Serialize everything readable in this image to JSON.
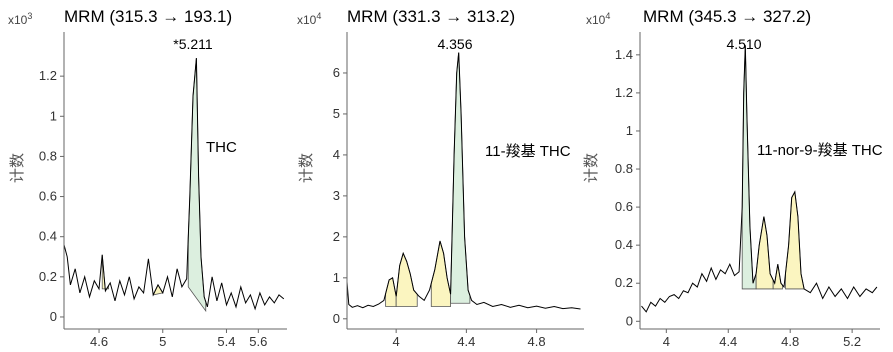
{
  "charts": [
    {
      "title": "MRM (315.3 → 193.1)",
      "multiplier_base": "x10",
      "multiplier_exp": "3",
      "ylabel": "计数",
      "yticks": [
        "0",
        "0.2",
        "0.4",
        "0.6",
        "0.8",
        "1",
        "1.2"
      ],
      "xticks": [
        "4.6",
        "5",
        "5.4",
        "5.6"
      ],
      "peak_label": "*5.211",
      "compound": "THC"
    },
    {
      "title": "MRM (331.3 → 313.2)",
      "multiplier_base": "x10",
      "multiplier_exp": "4",
      "ylabel": "计数",
      "yticks": [
        "0",
        "1",
        "2",
        "3",
        "4",
        "5",
        "6"
      ],
      "xticks": [
        "4",
        "4.4",
        "4.8"
      ],
      "peak_label": "4.356",
      "compound": "11-羧基 THC"
    },
    {
      "title": "MRM (345.3 → 327.2)",
      "multiplier_base": "x10",
      "multiplier_exp": "4",
      "ylabel": "计数",
      "yticks": [
        "0",
        "0.2",
        "0.4",
        "0.6",
        "0.8",
        "1",
        "1.2",
        "1.4"
      ],
      "xticks": [
        "4",
        "4.4",
        "4.8",
        "5.2"
      ],
      "peak_label": "4.510",
      "compound": "11-nor-9-羧基 THC"
    }
  ],
  "chart_data": [
    {
      "type": "line",
      "title": "MRM (315.3 → 193.1)",
      "ylabel": "计数",
      "y_unit_multiplier": "x10^3",
      "xlim": [
        4.38,
        5.78
      ],
      "ylim": [
        -0.05,
        1.42
      ],
      "points": [
        [
          4.38,
          0.36
        ],
        [
          4.4,
          0.3
        ],
        [
          4.42,
          0.16
        ],
        [
          4.45,
          0.24
        ],
        [
          4.48,
          0.12
        ],
        [
          4.51,
          0.2
        ],
        [
          4.54,
          0.1
        ],
        [
          4.57,
          0.18
        ],
        [
          4.6,
          0.14
        ],
        [
          4.62,
          0.31
        ],
        [
          4.64,
          0.13
        ],
        [
          4.67,
          0.17
        ],
        [
          4.7,
          0.08
        ],
        [
          4.73,
          0.18
        ],
        [
          4.76,
          0.11
        ],
        [
          4.79,
          0.2
        ],
        [
          4.82,
          0.09
        ],
        [
          4.85,
          0.15
        ],
        [
          4.88,
          0.12
        ],
        [
          4.91,
          0.29
        ],
        [
          4.94,
          0.11
        ],
        [
          4.97,
          0.16
        ],
        [
          5.0,
          0.12
        ],
        [
          5.03,
          0.2
        ],
        [
          5.06,
          0.1
        ],
        [
          5.09,
          0.24
        ],
        [
          5.12,
          0.15
        ],
        [
          5.15,
          0.19
        ],
        [
          5.17,
          0.6
        ],
        [
          5.19,
          1.1
        ],
        [
          5.211,
          1.29
        ],
        [
          5.225,
          0.7
        ],
        [
          5.24,
          0.3
        ],
        [
          5.26,
          0.1
        ],
        [
          5.28,
          0.05
        ],
        [
          5.31,
          0.2
        ],
        [
          5.34,
          0.08
        ],
        [
          5.37,
          0.17
        ],
        [
          5.4,
          0.06
        ],
        [
          5.43,
          0.12
        ],
        [
          5.46,
          0.05
        ],
        [
          5.49,
          0.15
        ],
        [
          5.52,
          0.07
        ],
        [
          5.55,
          0.11
        ],
        [
          5.58,
          0.04
        ],
        [
          5.61,
          0.12
        ],
        [
          5.64,
          0.06
        ],
        [
          5.67,
          0.1
        ],
        [
          5.7,
          0.07
        ],
        [
          5.73,
          0.11
        ],
        [
          5.76,
          0.09
        ]
      ],
      "integrated_peaks": [
        {
          "start": 4.62,
          "end": 4.66,
          "baseline": [
            0.14,
            0.14
          ],
          "fill": "#fbf5c0"
        },
        {
          "start": 4.94,
          "end": 5.0,
          "baseline": [
            0.11,
            0.12
          ],
          "fill": "#fbf5c0"
        },
        {
          "start": 5.16,
          "end": 5.27,
          "baseline": [
            0.15,
            0.03
          ],
          "fill": "#dcefdf"
        }
      ],
      "peak_label": "*5.211",
      "peak_x": 5.211,
      "compound": "THC"
    },
    {
      "type": "line",
      "title": "MRM (331.3 → 313.2)",
      "ylabel": "计数",
      "y_unit_multiplier": "x10^4",
      "xlim": [
        3.72,
        5.07
      ],
      "ylim": [
        -0.2,
        7.0
      ],
      "points": [
        [
          3.72,
          0.9
        ],
        [
          3.73,
          0.35
        ],
        [
          3.75,
          0.28
        ],
        [
          3.78,
          0.32
        ],
        [
          3.81,
          0.27
        ],
        [
          3.84,
          0.33
        ],
        [
          3.87,
          0.3
        ],
        [
          3.9,
          0.36
        ],
        [
          3.93,
          0.45
        ],
        [
          3.96,
          0.95
        ],
        [
          3.98,
          1.0
        ],
        [
          4.0,
          0.55
        ],
        [
          4.02,
          1.3
        ],
        [
          4.04,
          1.6
        ],
        [
          4.06,
          1.4
        ],
        [
          4.08,
          1.1
        ],
        [
          4.1,
          0.7
        ],
        [
          4.13,
          0.55
        ],
        [
          4.16,
          0.45
        ],
        [
          4.19,
          0.7
        ],
        [
          4.22,
          1.2
        ],
        [
          4.25,
          1.9
        ],
        [
          4.27,
          1.6
        ],
        [
          4.29,
          1.0
        ],
        [
          4.31,
          0.6
        ],
        [
          4.33,
          4.0
        ],
        [
          4.345,
          6.0
        ],
        [
          4.356,
          6.5
        ],
        [
          4.37,
          5.0
        ],
        [
          4.39,
          2.0
        ],
        [
          4.41,
          0.7
        ],
        [
          4.43,
          0.45
        ],
        [
          4.46,
          0.35
        ],
        [
          4.5,
          0.4
        ],
        [
          4.55,
          0.3
        ],
        [
          4.6,
          0.35
        ],
        [
          4.65,
          0.28
        ],
        [
          4.7,
          0.33
        ],
        [
          4.75,
          0.27
        ],
        [
          4.8,
          0.31
        ],
        [
          4.85,
          0.26
        ],
        [
          4.9,
          0.3
        ],
        [
          4.95,
          0.25
        ],
        [
          5.0,
          0.27
        ],
        [
          5.05,
          0.24
        ]
      ],
      "integrated_peaks": [
        {
          "start": 3.94,
          "end": 4.0,
          "baseline": [
            0.3,
            0.3
          ],
          "fill": "#fbf5c0"
        },
        {
          "start": 4.0,
          "end": 4.12,
          "baseline": [
            0.3,
            0.3
          ],
          "fill": "#fbf5c0"
        },
        {
          "start": 4.2,
          "end": 4.31,
          "baseline": [
            0.3,
            0.3
          ],
          "fill": "#fbf5c0"
        },
        {
          "start": 4.31,
          "end": 4.42,
          "baseline": [
            0.38,
            0.38
          ],
          "fill": "#dcefdf"
        }
      ],
      "peak_label": "4.356",
      "peak_x": 4.356,
      "compound": "11-羧基 THC"
    },
    {
      "type": "line",
      "title": "MRM (345.3 → 327.2)",
      "ylabel": "计数",
      "y_unit_multiplier": "x10^4",
      "xlim": [
        3.83,
        5.38
      ],
      "ylim": [
        -0.03,
        1.52
      ],
      "points": [
        [
          3.84,
          0.08
        ],
        [
          3.87,
          0.05
        ],
        [
          3.9,
          0.1
        ],
        [
          3.93,
          0.08
        ],
        [
          3.96,
          0.12
        ],
        [
          3.99,
          0.1
        ],
        [
          4.02,
          0.13
        ],
        [
          4.05,
          0.14
        ],
        [
          4.08,
          0.12
        ],
        [
          4.11,
          0.16
        ],
        [
          4.14,
          0.15
        ],
        [
          4.17,
          0.2
        ],
        [
          4.2,
          0.18
        ],
        [
          4.23,
          0.25
        ],
        [
          4.26,
          0.21
        ],
        [
          4.29,
          0.28
        ],
        [
          4.32,
          0.22
        ],
        [
          4.35,
          0.27
        ],
        [
          4.38,
          0.25
        ],
        [
          4.41,
          0.3
        ],
        [
          4.44,
          0.24
        ],
        [
          4.47,
          0.26
        ],
        [
          4.49,
          0.6
        ],
        [
          4.5,
          1.2
        ],
        [
          4.51,
          1.45
        ],
        [
          4.52,
          1.1
        ],
        [
          4.54,
          0.5
        ],
        [
          4.56,
          0.2
        ],
        [
          4.58,
          0.25
        ],
        [
          4.6,
          0.4
        ],
        [
          4.63,
          0.55
        ],
        [
          4.65,
          0.45
        ],
        [
          4.67,
          0.25
        ],
        [
          4.7,
          0.2
        ],
        [
          4.72,
          0.3
        ],
        [
          4.74,
          0.2
        ],
        [
          4.76,
          0.18
        ],
        [
          4.79,
          0.4
        ],
        [
          4.81,
          0.65
        ],
        [
          4.83,
          0.68
        ],
        [
          4.85,
          0.55
        ],
        [
          4.87,
          0.25
        ],
        [
          4.89,
          0.17
        ],
        [
          4.93,
          0.15
        ],
        [
          4.97,
          0.2
        ],
        [
          5.01,
          0.12
        ],
        [
          5.05,
          0.18
        ],
        [
          5.09,
          0.13
        ],
        [
          5.13,
          0.17
        ],
        [
          5.17,
          0.12
        ],
        [
          5.21,
          0.18
        ],
        [
          5.25,
          0.13
        ],
        [
          5.29,
          0.17
        ],
        [
          5.33,
          0.15
        ],
        [
          5.36,
          0.18
        ]
      ],
      "integrated_peaks": [
        {
          "start": 4.49,
          "end": 4.58,
          "baseline": [
            0.17,
            0.17
          ],
          "fill": "#dcefdf"
        },
        {
          "start": 4.58,
          "end": 4.69,
          "baseline": [
            0.17,
            0.17
          ],
          "fill": "#fbf5c0"
        },
        {
          "start": 4.69,
          "end": 4.75,
          "baseline": [
            0.17,
            0.17
          ],
          "fill": "#fbf5c0"
        },
        {
          "start": 4.77,
          "end": 4.89,
          "baseline": [
            0.17,
            0.17
          ],
          "fill": "#fbf5c0"
        }
      ],
      "peak_label": "4.510",
      "peak_x": 4.51,
      "compound": "11-nor-9-羧基 THC"
    }
  ],
  "colors": {
    "trace": "#000000",
    "axis": "#666666",
    "peak_fill_main": "#dcefdf",
    "peak_fill_other": "#fbf5c0"
  }
}
